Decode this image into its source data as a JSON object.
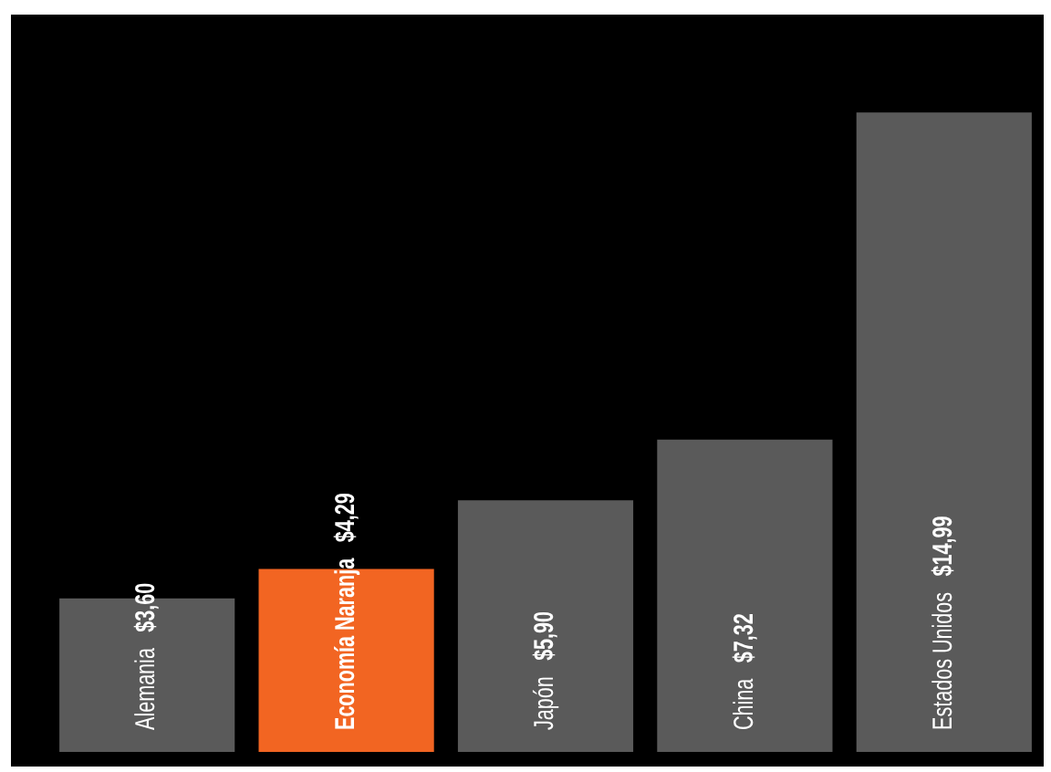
{
  "chart_data": {
    "type": "bar",
    "categories": [
      "Alemania",
      "Economía Naranja",
      "Japón",
      "China",
      "Estados Unidos"
    ],
    "values": [
      3.6,
      4.29,
      5.9,
      7.32,
      14.99
    ],
    "colors": [
      "#5a5a5a",
      "#f26522",
      "#5a5a5a",
      "#5a5a5a",
      "#5a5a5a"
    ],
    "value_labels": [
      "$3,60",
      "$4,29",
      "$5,90",
      "$7,32",
      "$14,99"
    ]
  }
}
